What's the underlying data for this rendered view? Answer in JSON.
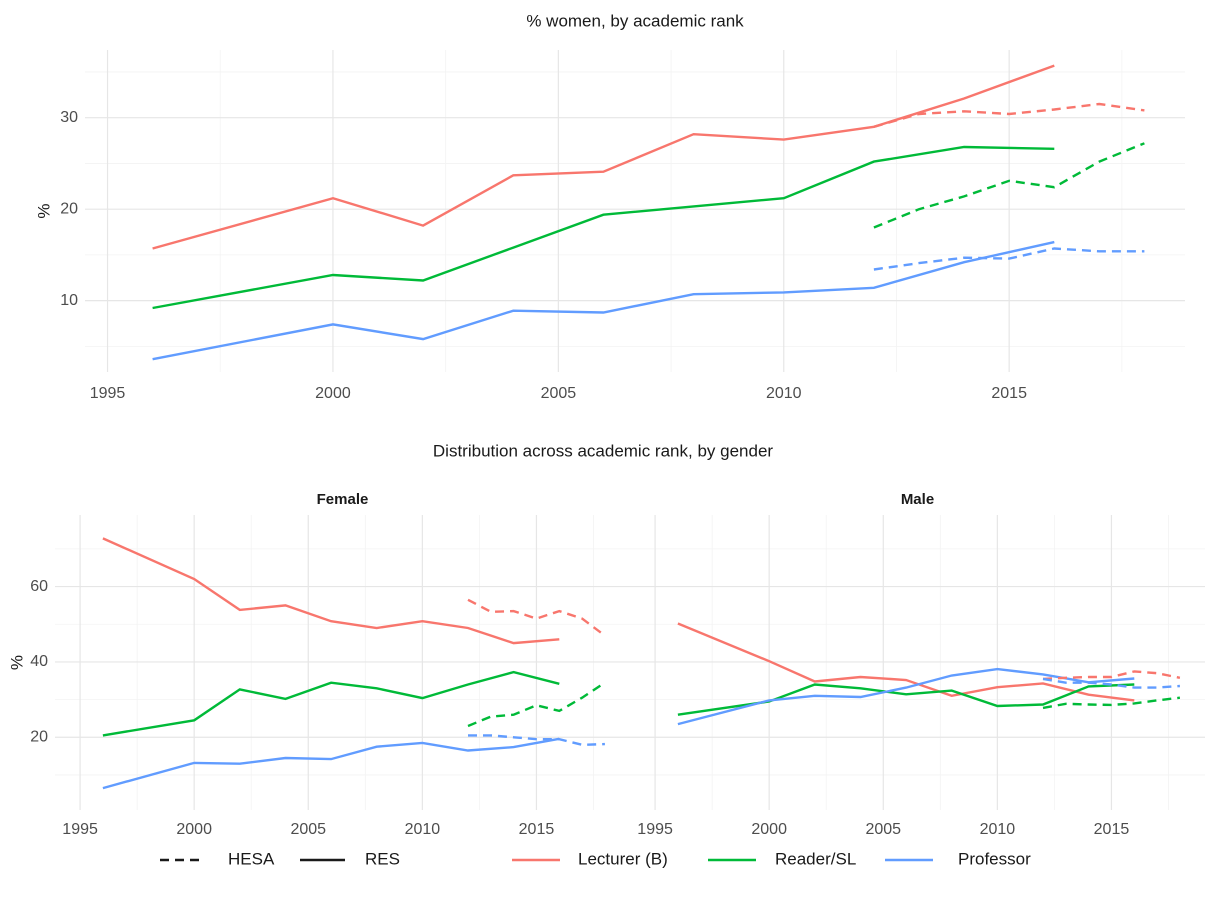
{
  "facet_heading": "Distribution across academic rank, by gender",
  "legend": {
    "linetype": [
      {
        "name": "HESA",
        "dash": "dashed"
      },
      {
        "name": "RES",
        "dash": "solid"
      }
    ],
    "color": [
      {
        "name": "Lecturer (B)",
        "color": "#F8766D"
      },
      {
        "name": "Reader/SL",
        "color": "#00BA38"
      },
      {
        "name": "Professor",
        "color": "#619CFF"
      }
    ]
  },
  "chart_data": [
    {
      "type": "line",
      "title": "% women, by academic rank",
      "y_label": "%",
      "xlim": [
        1994.5,
        2018.9
      ],
      "xticks": [
        1995,
        2000,
        2005,
        2010,
        2015
      ],
      "xminor": [
        1997.5,
        2002.5,
        2007.5,
        2012.5,
        2017.5
      ],
      "ylim": [
        2.2,
        37.4
      ],
      "yticks": [
        10,
        20,
        30
      ],
      "yminor": [
        5,
        15,
        25,
        35
      ],
      "grid": true,
      "series": [
        {
          "name": "Lecturer (B)",
          "color": "#F8766D",
          "dash": "solid",
          "x": [
            1996,
            2000,
            2002,
            2004,
            2006,
            2008,
            2010,
            2012,
            2014,
            2016
          ],
          "values": [
            15.7,
            21.2,
            18.2,
            23.7,
            24.1,
            28.2,
            27.6,
            29.0,
            32.1,
            35.7
          ]
        },
        {
          "name": "Reader/SL",
          "color": "#00BA38",
          "dash": "solid",
          "x": [
            1996,
            2000,
            2002,
            2004,
            2006,
            2008,
            2010,
            2012,
            2014,
            2016
          ],
          "values": [
            9.2,
            12.8,
            12.2,
            15.8,
            19.4,
            20.3,
            21.2,
            25.2,
            26.8,
            26.6
          ]
        },
        {
          "name": "Professor",
          "color": "#619CFF",
          "dash": "solid",
          "x": [
            1996,
            2000,
            2002,
            2004,
            2006,
            2008,
            2010,
            2012,
            2014,
            2016
          ],
          "values": [
            3.6,
            7.4,
            5.8,
            8.9,
            8.7,
            10.7,
            10.9,
            11.4,
            14.2,
            16.4
          ]
        },
        {
          "name": "Lecturer (B)",
          "color": "#F8766D",
          "dash": "dashed",
          "x": [
            2012,
            2013,
            2014,
            2015,
            2016,
            2017,
            2018
          ],
          "values": [
            29.0,
            30.4,
            30.7,
            30.4,
            30.9,
            31.5,
            30.8
          ]
        },
        {
          "name": "Reader/SL",
          "color": "#00BA38",
          "dash": "dashed",
          "x": [
            2012,
            2013,
            2014,
            2015,
            2016,
            2017,
            2018
          ],
          "values": [
            18.0,
            20.0,
            21.4,
            23.1,
            22.4,
            25.2,
            27.2
          ]
        },
        {
          "name": "Professor",
          "color": "#619CFF",
          "dash": "dashed",
          "x": [
            2012,
            2013,
            2014,
            2015,
            2016,
            2017,
            2018
          ],
          "values": [
            13.4,
            14.1,
            14.7,
            14.6,
            15.7,
            15.4,
            15.4
          ]
        }
      ]
    },
    {
      "type": "line",
      "title": "Female",
      "y_label": "%",
      "xlim": [
        1993.9,
        2019.1
      ],
      "xticks": [
        1995,
        2000,
        2005,
        2010,
        2015
      ],
      "xminor": [
        1997.5,
        2002.5,
        2007.5,
        2012.5,
        2017.5
      ],
      "ylim": [
        0.7,
        79
      ],
      "yticks": [
        20,
        40,
        60
      ],
      "yminor": [
        10,
        30,
        50,
        70
      ],
      "grid": true,
      "series": [
        {
          "name": "Lecturer (B)",
          "color": "#F8766D",
          "dash": "solid",
          "x": [
            1996,
            2000,
            2002,
            2004,
            2006,
            2008,
            2010,
            2012,
            2014,
            2016
          ],
          "values": [
            72.8,
            62.0,
            53.8,
            55.0,
            50.8,
            49.0,
            50.8,
            49.0,
            45.0,
            46.0
          ]
        },
        {
          "name": "Reader/SL",
          "color": "#00BA38",
          "dash": "solid",
          "x": [
            1996,
            2000,
            2002,
            2004,
            2006,
            2008,
            2010,
            2012,
            2014,
            2016
          ],
          "values": [
            20.5,
            24.5,
            32.7,
            30.2,
            34.5,
            33.0,
            30.4,
            34.0,
            37.3,
            34.2
          ]
        },
        {
          "name": "Professor",
          "color": "#619CFF",
          "dash": "solid",
          "x": [
            1996,
            2000,
            2002,
            2004,
            2006,
            2008,
            2010,
            2012,
            2014,
            2016
          ],
          "values": [
            6.5,
            13.2,
            13.0,
            14.5,
            14.2,
            17.5,
            18.5,
            16.5,
            17.4,
            19.6
          ]
        },
        {
          "name": "Lecturer (B)",
          "color": "#F8766D",
          "dash": "dashed",
          "x": [
            2012,
            2013,
            2014,
            2015,
            2016,
            2017,
            2018
          ],
          "values": [
            56.5,
            53.3,
            53.5,
            51.5,
            53.5,
            51.5,
            47.0
          ]
        },
        {
          "name": "Reader/SL",
          "color": "#00BA38",
          "dash": "dashed",
          "x": [
            2012,
            2013,
            2014,
            2015,
            2016,
            2017,
            2018
          ],
          "values": [
            23.0,
            25.5,
            26.0,
            28.5,
            27.0,
            30.5,
            34.5
          ]
        },
        {
          "name": "Professor",
          "color": "#619CFF",
          "dash": "dashed",
          "x": [
            2012,
            2013,
            2014,
            2015,
            2016,
            2017,
            2018
          ],
          "values": [
            20.5,
            20.5,
            20.0,
            19.5,
            19.5,
            18.0,
            18.2
          ]
        }
      ]
    },
    {
      "type": "line",
      "title": "Male",
      "xlim": [
        1993.9,
        2019.1
      ],
      "xticks": [
        1995,
        2000,
        2005,
        2010,
        2015
      ],
      "xminor": [
        1997.5,
        2002.5,
        2007.5,
        2012.5,
        2017.5
      ],
      "ylim": [
        0.7,
        79
      ],
      "yticks": [
        20,
        40,
        60
      ],
      "yminor": [
        10,
        30,
        50,
        70
      ],
      "grid": true,
      "series": [
        {
          "name": "Lecturer (B)",
          "color": "#F8766D",
          "dash": "solid",
          "x": [
            1996,
            2000,
            2002,
            2004,
            2006,
            2008,
            2010,
            2012,
            2014,
            2016
          ],
          "values": [
            50.2,
            40.2,
            34.8,
            36.0,
            35.2,
            31.0,
            33.3,
            34.3,
            31.3,
            29.8
          ]
        },
        {
          "name": "Reader/SL",
          "color": "#00BA38",
          "dash": "solid",
          "x": [
            1996,
            2000,
            2002,
            2004,
            2006,
            2008,
            2010,
            2012,
            2014,
            2016
          ],
          "values": [
            26.0,
            29.5,
            34.0,
            33.0,
            31.4,
            32.4,
            28.3,
            28.7,
            33.5,
            34.0
          ]
        },
        {
          "name": "Professor",
          "color": "#619CFF",
          "dash": "solid",
          "x": [
            1996,
            2000,
            2002,
            2004,
            2006,
            2008,
            2010,
            2012,
            2014,
            2016
          ],
          "values": [
            23.5,
            29.8,
            31.0,
            30.7,
            33.2,
            36.4,
            38.1,
            36.7,
            34.6,
            35.6
          ]
        },
        {
          "name": "Lecturer (B)",
          "color": "#F8766D",
          "dash": "dashed",
          "x": [
            2012,
            2013,
            2014,
            2015,
            2016,
            2017,
            2018
          ],
          "values": [
            35.5,
            35.8,
            36.0,
            36.0,
            37.5,
            37.0,
            35.8
          ]
        },
        {
          "name": "Reader/SL",
          "color": "#00BA38",
          "dash": "dashed",
          "x": [
            2012,
            2013,
            2014,
            2015,
            2016,
            2017,
            2018
          ],
          "values": [
            27.8,
            28.9,
            28.7,
            28.6,
            29.0,
            29.8,
            30.5
          ]
        },
        {
          "name": "Professor",
          "color": "#619CFF",
          "dash": "dashed",
          "x": [
            2012,
            2013,
            2014,
            2015,
            2016,
            2017,
            2018
          ],
          "values": [
            35.5,
            34.5,
            34.5,
            34.0,
            33.2,
            33.2,
            33.6
          ]
        }
      ]
    }
  ]
}
